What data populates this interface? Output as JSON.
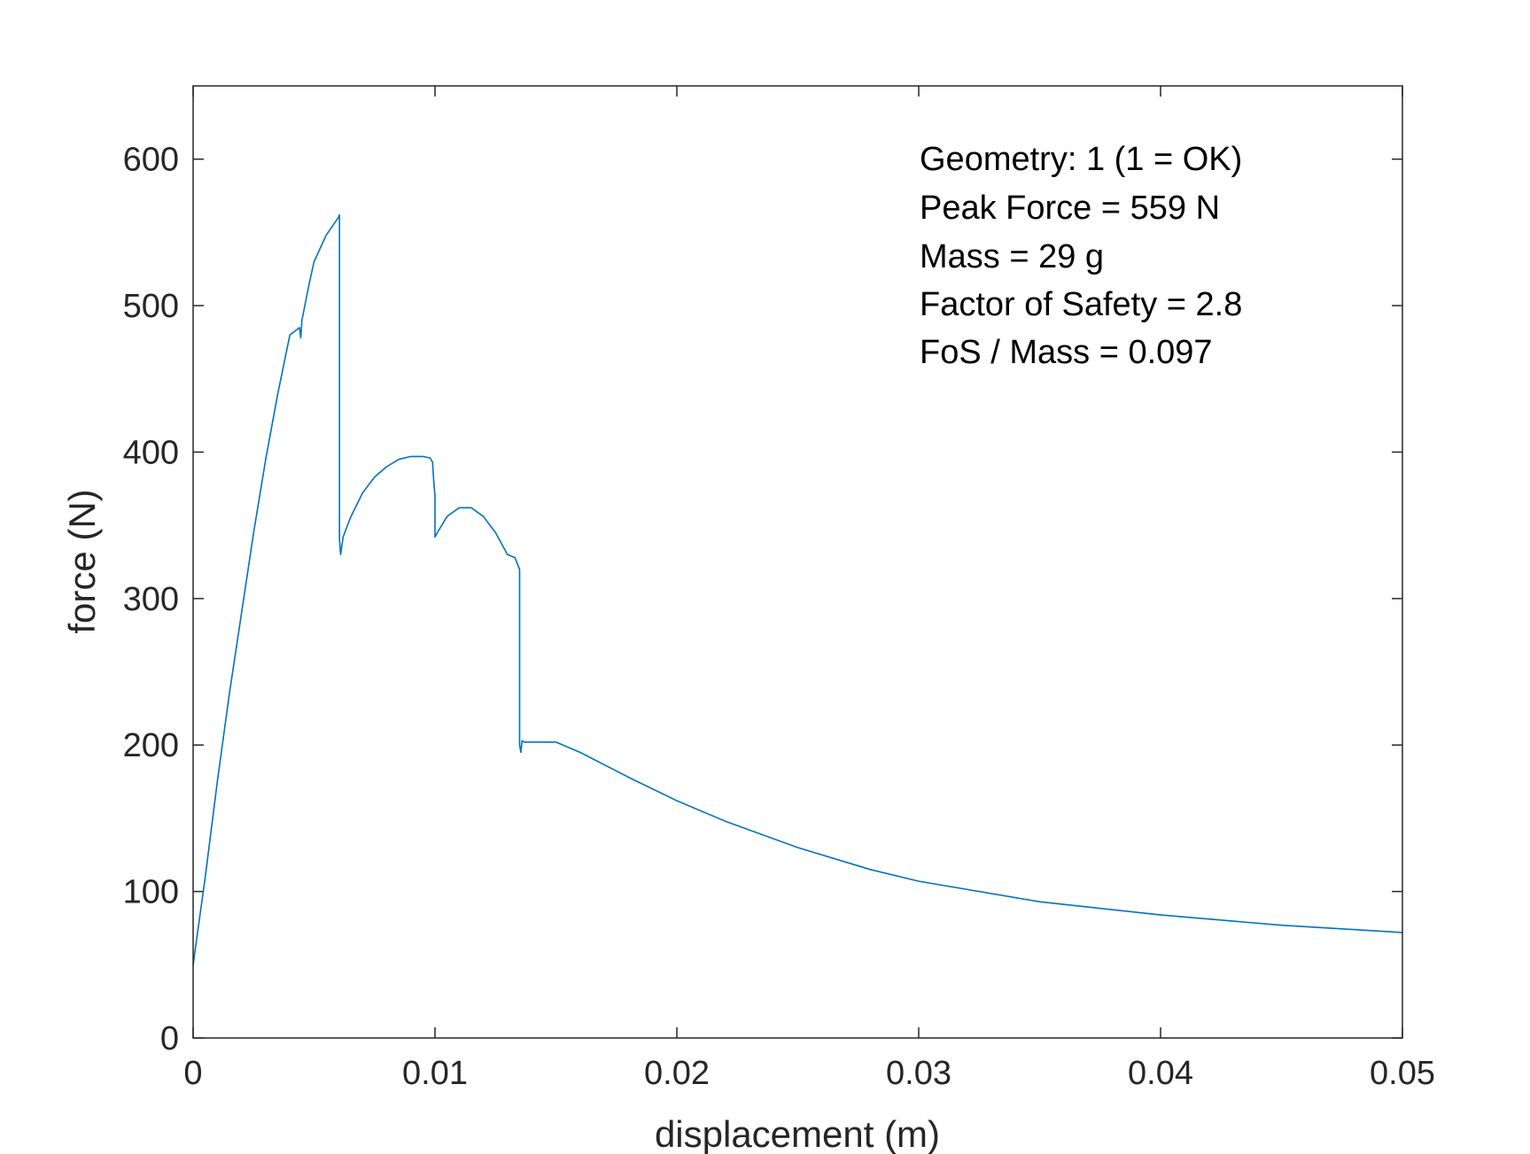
{
  "chart_data": {
    "type": "line",
    "title": "",
    "xlabel": "displacement (m)",
    "ylabel": "force (N)",
    "xlim": [
      0,
      0.05
    ],
    "ylim": [
      0,
      650
    ],
    "xticks": [
      0,
      0.01,
      0.02,
      0.03,
      0.04,
      0.05
    ],
    "xtick_labels": [
      "0",
      "0.01",
      "0.02",
      "0.03",
      "0.04",
      "0.05"
    ],
    "yticks": [
      0,
      100,
      200,
      300,
      400,
      500,
      600
    ],
    "ytick_labels": [
      "0",
      "100",
      "200",
      "300",
      "400",
      "500",
      "600"
    ],
    "grid": false,
    "series": [
      {
        "color": "#0072bd",
        "x": [
          0,
          0.0005,
          0.001,
          0.0015,
          0.002,
          0.0025,
          0.003,
          0.0035,
          0.004,
          0.0044,
          0.00445,
          0.0045,
          0.0048,
          0.005,
          0.0055,
          0.006,
          0.00605,
          0.00605,
          0.0061,
          0.0062,
          0.0065,
          0.007,
          0.0075,
          0.008,
          0.0085,
          0.009,
          0.0095,
          0.0098,
          0.0099,
          0.00995,
          0.01,
          0.01,
          0.0101,
          0.0105,
          0.011,
          0.0115,
          0.012,
          0.0125,
          0.013,
          0.0133,
          0.0135,
          0.0135,
          0.01355,
          0.0136,
          0.0137,
          0.014,
          0.015,
          0.016,
          0.018,
          0.02,
          0.022,
          0.025,
          0.028,
          0.03,
          0.035,
          0.04,
          0.045,
          0.05
        ],
        "y": [
          50,
          110,
          175,
          235,
          290,
          345,
          395,
          440,
          480,
          485,
          478,
          490,
          515,
          530,
          548,
          560,
          562,
          340,
          330,
          342,
          355,
          372,
          383,
          390,
          395,
          397,
          397,
          396,
          393,
          380,
          370,
          342,
          345,
          356,
          362,
          362,
          356,
          345,
          330,
          328,
          320,
          200,
          195,
          203,
          202,
          202,
          202,
          195,
          178,
          162,
          148,
          130,
          115,
          107,
          93,
          84,
          77,
          72
        ]
      }
    ],
    "annotations": [
      "Geometry: 1 (1 = OK)",
      "Peak Force = 559 N",
      "Mass = 29 g",
      "Factor of Safety = 2.8",
      "FoS / Mass = 0.097"
    ]
  }
}
